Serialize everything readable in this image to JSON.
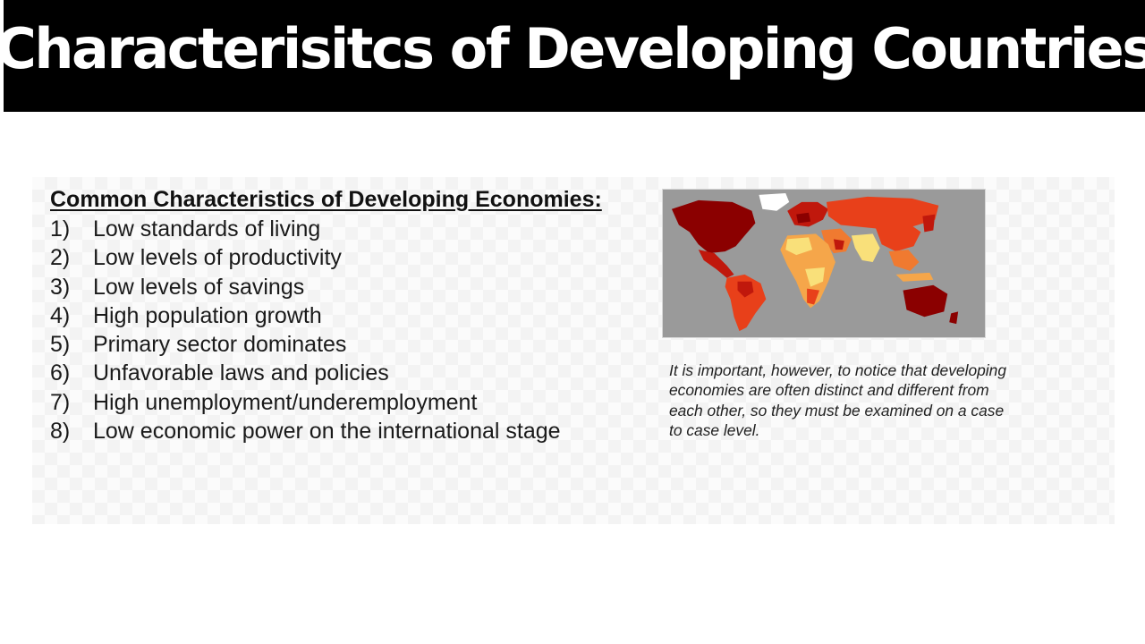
{
  "title": "Characterisitcs of Developing Countries",
  "list": {
    "heading": "Common Characteristics of Developing Economies:",
    "items": [
      {
        "num": "1)",
        "text": "Low standards of living"
      },
      {
        "num": "2)",
        "text": "Low levels of productivity"
      },
      {
        "num": "3)",
        "text": "Low levels of savings"
      },
      {
        "num": "4)",
        "text": "High population growth"
      },
      {
        "num": "5)",
        "text": "Primary sector dominates"
      },
      {
        "num": "6)",
        "text": "Unfavorable laws and policies"
      },
      {
        "num": "7)",
        "text": "High unemployment/underemployment"
      },
      {
        "num": "8)",
        "text": "Low economic power on the international stage"
      }
    ]
  },
  "map": {
    "icon": "world-map-icon",
    "colors": {
      "ocean": "#9a9a9a",
      "darkest": "#8b0000",
      "dark_red": "#c0180c",
      "red_orange": "#e8401a",
      "orange": "#f07a30",
      "light_orange": "#f5a64a",
      "yellow": "#f9e07a",
      "white": "#ffffff"
    }
  },
  "note": "It is important, however, to notice that developing economies are often distinct and different from each other, so they must be examined on a case to case level."
}
